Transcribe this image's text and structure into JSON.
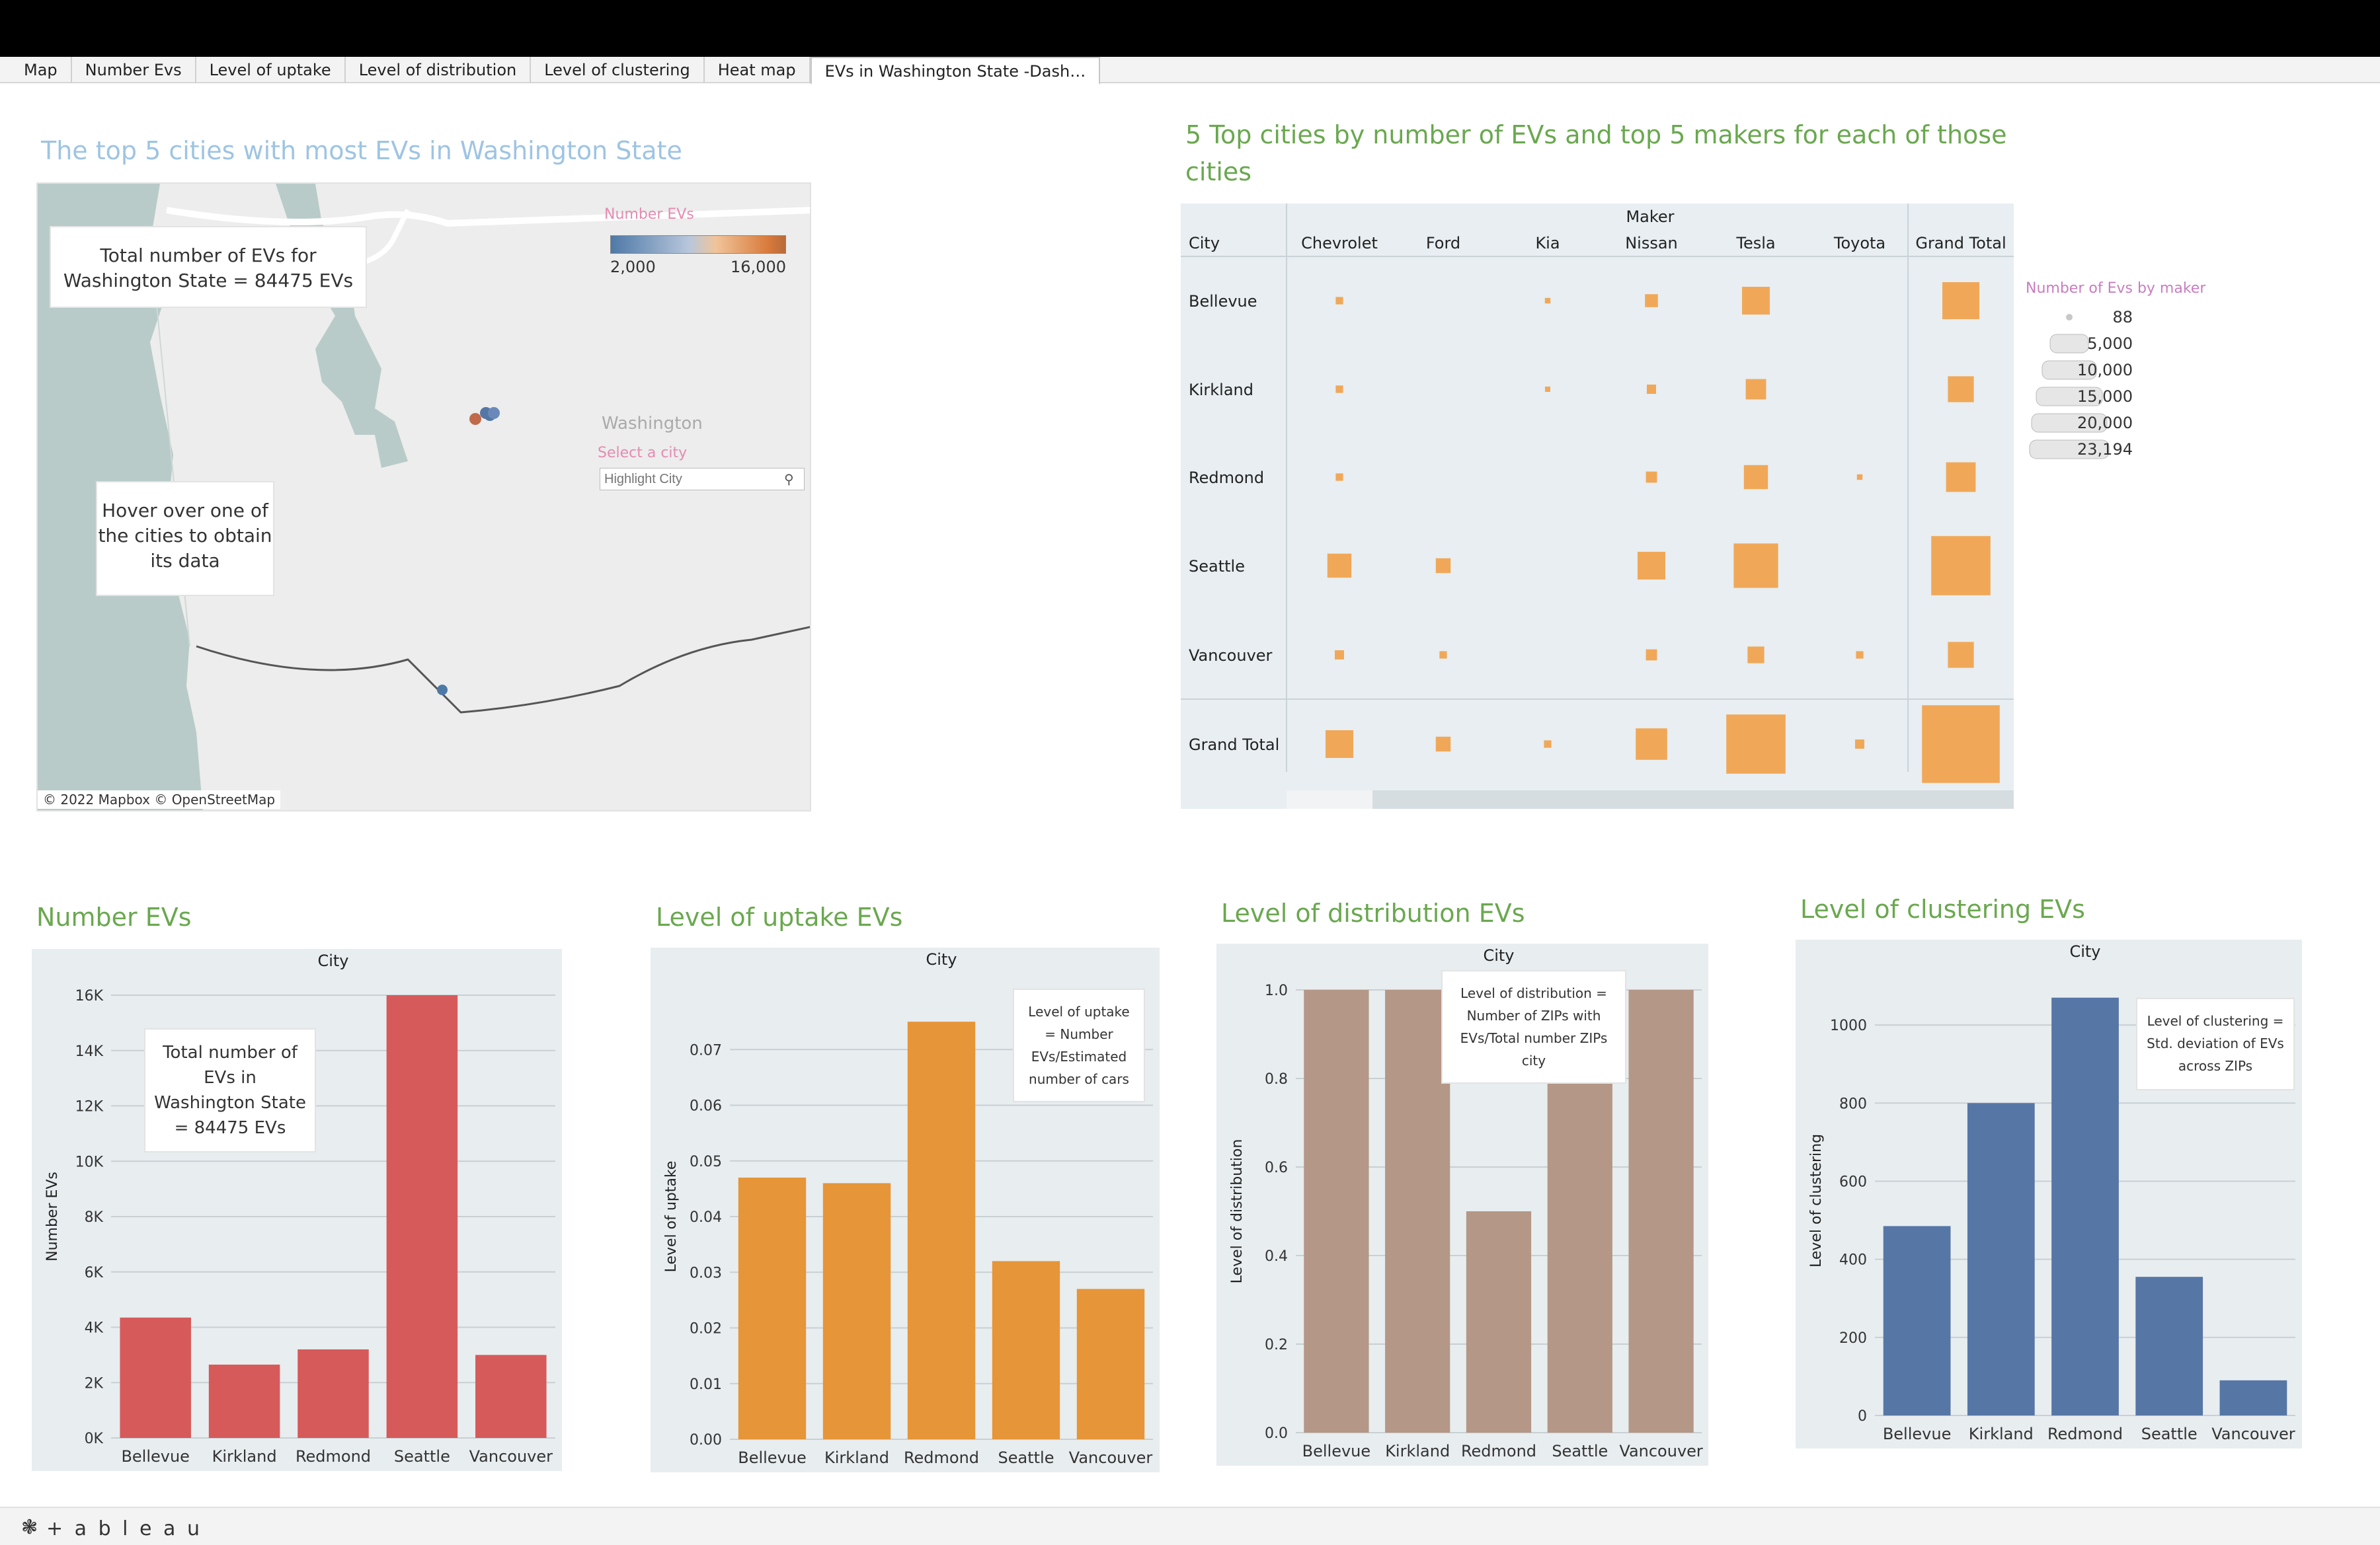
{
  "tabs": [
    "Map",
    "Number Evs",
    "Level of uptake",
    "Level of distribution",
    "Level of clustering",
    "Heat map",
    "EVs in Washington State -Dash…"
  ],
  "active_tab_index": 6,
  "map_panel": {
    "title": "The top 5 cities with most EVs in Washington State",
    "total_card": "Total number of EVs for Washington State = 84475 EVs",
    "hover_card": "Hover over one of the cities to obtain its data",
    "legend_title": "Number EVs",
    "legend_min": "2,000",
    "legend_max": "16,000",
    "state_label": "Washington",
    "select_label": "Select a city",
    "search_placeholder": "Highlight City",
    "attribution": "© 2022 Mapbox © OpenStreetMap",
    "colors": {
      "low": "#4e79a7",
      "high": "#e15759",
      "mid": "#f28e2b"
    }
  },
  "table_panel": {
    "title": "5 Top cities by number of EVs and top 5 makers for each of those cities",
    "maker_header": "Maker",
    "city_header": "City",
    "columns": [
      "Chevrolet",
      "Ford",
      "Kia",
      "Nissan",
      "Tesla",
      "Toyota",
      "Grand Total"
    ],
    "rows": [
      "Bellevue",
      "Kirkland",
      "Redmond",
      "Seattle",
      "Vancouver",
      "Grand Total"
    ],
    "legend_title": "Number of Evs by maker",
    "legend_items": [
      "88",
      "5,000",
      "10,000",
      "15,000",
      "20,000",
      "23,194"
    ],
    "cell_sizes": [
      [
        0.2,
        0,
        0.15,
        0.35,
        0.75,
        0,
        1.0
      ],
      [
        0.2,
        0,
        0.12,
        0.25,
        0.55,
        0,
        0.7
      ],
      [
        0.2,
        0,
        0,
        0.3,
        0.65,
        0.15,
        0.8
      ],
      [
        0.65,
        0.4,
        0,
        0.75,
        1.2,
        0,
        1.6
      ],
      [
        0.25,
        0.2,
        0,
        0.3,
        0.45,
        0.2,
        0.7
      ],
      [
        0.75,
        0.4,
        0.2,
        0.85,
        1.6,
        0.25,
        2.1
      ]
    ],
    "square_color": "#f0a858"
  },
  "charts": [
    {
      "name": "number-evs",
      "title": "Number EVs",
      "header": "City",
      "ylabel": "Number EVs",
      "ticks": [
        "0K",
        "2K",
        "4K",
        "6K",
        "8K",
        "10K",
        "12K",
        "14K",
        "16K"
      ],
      "ymax": 16000,
      "color": "#d65a5a",
      "note": "Total number of EVs in Washington State = 84475 EVs",
      "chart_data": {
        "type": "bar",
        "categories": [
          "Bellevue",
          "Kirkland",
          "Redmond",
          "Seattle",
          "Vancouver"
        ],
        "values": [
          4350,
          2650,
          3200,
          16000,
          3000
        ]
      }
    },
    {
      "name": "level-of-uptake",
      "title": "Level of uptake EVs",
      "header": "City",
      "ylabel": "Level of uptake",
      "ticks": [
        "0.00",
        "0.01",
        "0.02",
        "0.03",
        "0.04",
        "0.05",
        "0.06",
        "0.07"
      ],
      "ymax": 0.08,
      "color": "#e69538",
      "note": "Level of uptake = Number EVs/Estimated number of cars",
      "chart_data": {
        "type": "bar",
        "categories": [
          "Bellevue",
          "Kirkland",
          "Redmond",
          "Seattle",
          "Vancouver"
        ],
        "values": [
          0.047,
          0.046,
          0.075,
          0.032,
          0.027
        ]
      }
    },
    {
      "name": "level-of-distribution",
      "title": "Level of distribution EVs",
      "header": "City",
      "ylabel": "Level of distribution",
      "ticks": [
        "0.0",
        "0.2",
        "0.4",
        "0.6",
        "0.8",
        "1.0"
      ],
      "ymax": 1.0,
      "color": "#b49786",
      "note": "Level of distribution = Number of ZIPs with EVs/Total number ZIPs city",
      "chart_data": {
        "type": "bar",
        "categories": [
          "Bellevue",
          "Kirkland",
          "Redmond",
          "Seattle",
          "Vancouver"
        ],
        "values": [
          1.0,
          1.0,
          0.5,
          0.79,
          1.0
        ]
      }
    },
    {
      "name": "level-of-clustering",
      "title": "Level of clustering EVs",
      "header": "City",
      "ylabel": "Level of clustering",
      "ticks": [
        "0",
        "200",
        "400",
        "600",
        "800",
        "1000"
      ],
      "ymax": 1100,
      "color": "#5676a6",
      "note": "Level of clustering = Std. deviation of EVs across ZIPs",
      "chart_data": {
        "type": "bar",
        "categories": [
          "Bellevue",
          "Kirkland",
          "Redmond",
          "Seattle",
          "Vancouver"
        ],
        "values": [
          485,
          800,
          1070,
          355,
          90
        ]
      }
    }
  ],
  "footer": {
    "brand": "+ a b l e a u"
  }
}
